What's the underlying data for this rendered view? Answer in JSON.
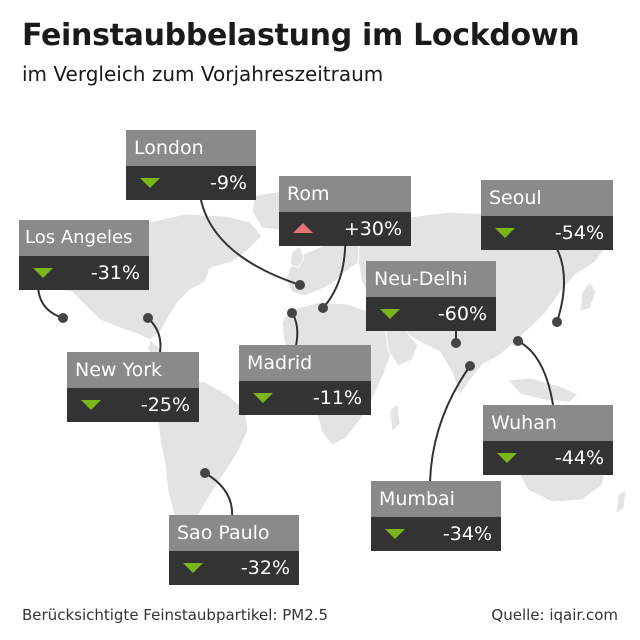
{
  "title": "Feinstaubbelastung im Lockdown",
  "subtitle": "im Vergleich zum Vorjahreszeitraum",
  "cities": [
    {
      "name": "London",
      "change": "-9%",
      "trend": "down"
    },
    {
      "name": "Rom",
      "change": "+30%",
      "trend": "up"
    },
    {
      "name": "Seoul",
      "change": "-54%",
      "trend": "down"
    },
    {
      "name": "Los Angeles",
      "change": "-31%",
      "trend": "down"
    },
    {
      "name": "Neu-Delhi",
      "change": "-60%",
      "trend": "down"
    },
    {
      "name": "New York",
      "change": "-25%",
      "trend": "down"
    },
    {
      "name": "Madrid",
      "change": "-11%",
      "trend": "down"
    },
    {
      "name": "Wuhan",
      "change": "-44%",
      "trend": "down"
    },
    {
      "name": "Mumbai",
      "change": "-34%",
      "trend": "down"
    },
    {
      "name": "Sao Paulo",
      "change": "-32%",
      "trend": "down"
    }
  ],
  "footer": {
    "note": "Berücksichtigte Feinstaubpartikel: PM2.5",
    "source": "Quelle: iqair.com"
  },
  "colors": {
    "decrease": "#7cb518",
    "increase": "#e8707a",
    "land": "#e3e3e3",
    "label_header": "#8a8a8a",
    "label_value": "#333333"
  }
}
